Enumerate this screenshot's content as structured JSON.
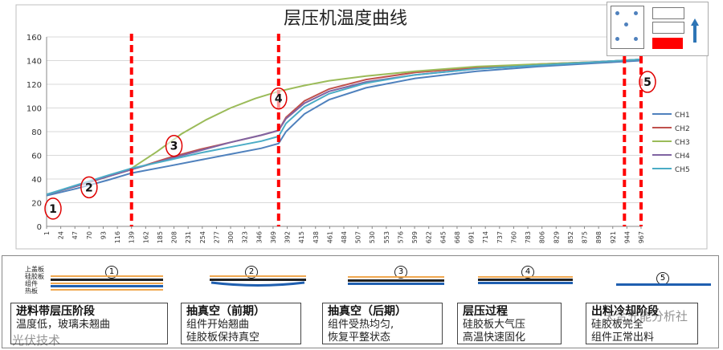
{
  "chart_data": {
    "type": "line",
    "title": "层压机温度曲线",
    "ylim": [
      0,
      160
    ],
    "yticks": [
      0,
      20,
      40,
      60,
      80,
      100,
      120,
      140,
      160
    ],
    "xticks": [
      "1",
      "24",
      "47",
      "70",
      "93",
      "116",
      "139",
      "162",
      "185",
      "208",
      "231",
      "254",
      "277",
      "300",
      "323",
      "346",
      "369",
      "392",
      "415",
      "438",
      "461",
      "484",
      "507",
      "530",
      "553",
      "576",
      "599",
      "622",
      "645",
      "668",
      "691",
      "714",
      "737",
      "760",
      "783",
      "806",
      "829",
      "852",
      "875",
      "898",
      "921",
      "944",
      "967"
    ],
    "xlim": [
      1,
      967
    ],
    "series": [
      {
        "name": "CH1",
        "color": "#4f81bd",
        "x": [
          1,
          50,
          100,
          139,
          200,
          250,
          300,
          350,
          378,
          390,
          420,
          460,
          520,
          600,
          700,
          800,
          900,
          967
        ],
        "y": [
          26,
          32,
          39,
          45,
          51,
          56,
          61,
          66,
          70,
          80,
          95,
          107,
          117,
          125,
          131,
          135,
          138,
          140
        ]
      },
      {
        "name": "CH2",
        "color": "#c0504d",
        "x": [
          1,
          50,
          100,
          139,
          200,
          250,
          300,
          350,
          378,
          390,
          420,
          460,
          520,
          600,
          700,
          800,
          900,
          967
        ],
        "y": [
          27,
          34,
          42,
          48,
          58,
          65,
          71,
          77,
          81,
          92,
          106,
          116,
          124,
          130,
          134,
          137,
          139,
          141
        ]
      },
      {
        "name": "CH3",
        "color": "#9bbb59",
        "x": [
          1,
          50,
          100,
          139,
          180,
          220,
          260,
          300,
          340,
          378,
          420,
          460,
          520,
          600,
          700,
          800,
          900,
          967
        ],
        "y": [
          27,
          34,
          42,
          49,
          63,
          78,
          90,
          100,
          108,
          114,
          119,
          123,
          127,
          131,
          135,
          137,
          139,
          141
        ]
      },
      {
        "name": "CH4",
        "color": "#8064a2",
        "x": [
          1,
          50,
          100,
          139,
          200,
          250,
          300,
          350,
          378,
          390,
          420,
          460,
          520,
          600,
          700,
          800,
          900,
          967
        ],
        "y": [
          27,
          34,
          42,
          48,
          57,
          64,
          71,
          77,
          81,
          91,
          104,
          114,
          122,
          128,
          133,
          136,
          139,
          141
        ]
      },
      {
        "name": "CH5",
        "color": "#4bacc6",
        "x": [
          1,
          50,
          100,
          139,
          200,
          250,
          300,
          350,
          378,
          390,
          420,
          460,
          520,
          600,
          700,
          800,
          900,
          967
        ],
        "y": [
          27,
          35,
          43,
          49,
          56,
          62,
          67,
          72,
          76,
          87,
          101,
          112,
          121,
          128,
          133,
          136,
          139,
          141
        ]
      }
    ],
    "stage_lines_x": [
      139,
      378,
      940,
      967
    ],
    "markers": [
      {
        "label": "1",
        "x": 1,
        "y": 15
      },
      {
        "label": "2",
        "x": 70,
        "y": 33
      },
      {
        "label": "3",
        "x": 208,
        "y": 68
      },
      {
        "label": "4",
        "x": 378,
        "y": 108
      },
      {
        "label": "5",
        "x": 967,
        "y": 122
      }
    ]
  },
  "stages": [
    {
      "num": "1",
      "title": "进料带层压阶段",
      "lines": [
        "温度低，玻璃未翘曲"
      ]
    },
    {
      "num": "2",
      "title": "抽真空（前期）",
      "lines": [
        "组件开始翘曲",
        "硅胶板保持真空"
      ]
    },
    {
      "num": "3",
      "title": "抽真空（后期）",
      "lines": [
        "组件受热均匀,",
        "恢复平整状态"
      ]
    },
    {
      "num": "4",
      "title": "层压过程",
      "lines": [
        "硅胶板大气压",
        "高温快速固化"
      ]
    },
    {
      "num": "5",
      "title": "出料冷却阶段",
      "lines": [
        "硅胶板完全",
        "组件正常出料"
      ]
    }
  ],
  "layer_labels": [
    "上盖板",
    "硅胶板",
    "组件",
    "热板"
  ],
  "watermarks": [
    "天合光能分析社",
    "光伏技术"
  ],
  "colors": {
    "stage_line": "#ff0000",
    "axis": "#888888",
    "grid": "#d9d9d9",
    "component": "#1f5fb0",
    "silicone": "#222222"
  }
}
